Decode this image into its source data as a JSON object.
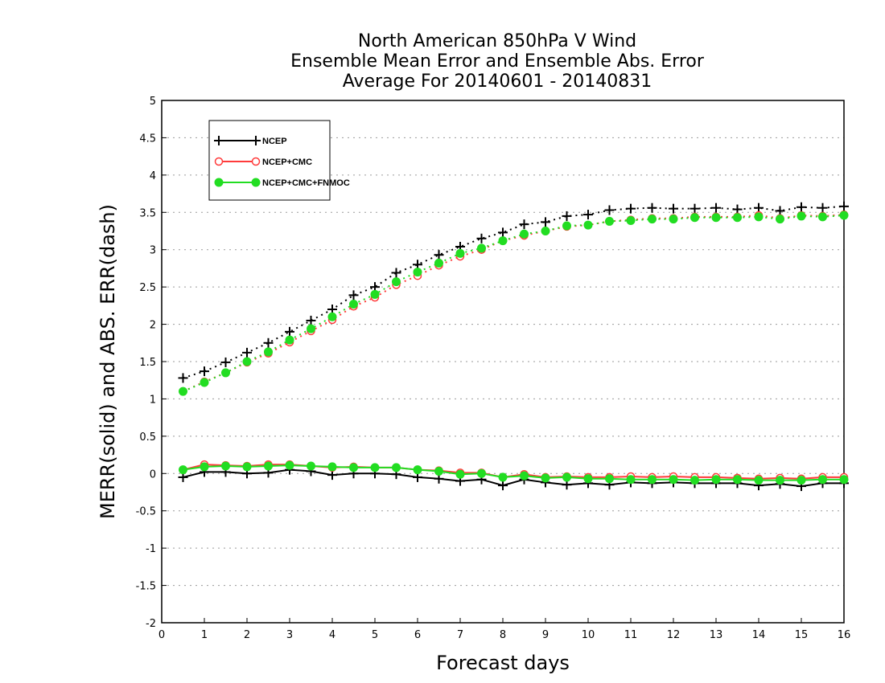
{
  "chart_data": {
    "type": "line",
    "title": [
      "North American 850hPa V Wind",
      "Ensemble Mean Error and Ensemble Abs. Error",
      "Average For 20140601 - 20140831"
    ],
    "xlabel": "Forecast days",
    "ylabel": "MERR(solid) and ABS. ERR(dash)",
    "xlim": [
      0,
      16
    ],
    "ylim": [
      -2,
      5
    ],
    "xticks": [
      0,
      1,
      2,
      3,
      4,
      5,
      6,
      7,
      8,
      9,
      10,
      11,
      12,
      13,
      14,
      15,
      16
    ],
    "yticks": [
      -2,
      -1.5,
      -1,
      -0.5,
      0,
      0.5,
      1,
      1.5,
      2,
      2.5,
      3,
      3.5,
      4,
      4.5,
      5
    ],
    "grid": "horizontal dotted",
    "legend_position": "top-left",
    "x": [
      0.5,
      1,
      1.5,
      2,
      2.5,
      3,
      3.5,
      4,
      4.5,
      5,
      5.5,
      6,
      6.5,
      7,
      7.5,
      8,
      8.5,
      9,
      9.5,
      10,
      10.5,
      11,
      11.5,
      12,
      12.5,
      13,
      13.5,
      14,
      14.5,
      15,
      15.5,
      16
    ],
    "series": [
      {
        "name": "NCEP",
        "color": "#000000",
        "marker": "plus",
        "merr": [
          -0.05,
          0.02,
          0.02,
          0.0,
          0.01,
          0.05,
          0.03,
          -0.02,
          0.0,
          0.0,
          -0.01,
          -0.05,
          -0.07,
          -0.1,
          -0.08,
          -0.16,
          -0.08,
          -0.12,
          -0.15,
          -0.13,
          -0.15,
          -0.12,
          -0.13,
          -0.12,
          -0.13,
          -0.13,
          -0.13,
          -0.16,
          -0.14,
          -0.17,
          -0.13,
          -0.13
        ],
        "abs_err": [
          1.28,
          1.37,
          1.49,
          1.62,
          1.75,
          1.9,
          2.05,
          2.2,
          2.39,
          2.5,
          2.69,
          2.8,
          2.93,
          3.04,
          3.15,
          3.23,
          3.34,
          3.37,
          3.45,
          3.47,
          3.53,
          3.55,
          3.56,
          3.55,
          3.55,
          3.56,
          3.54,
          3.56,
          3.52,
          3.57,
          3.56,
          3.58
        ]
      },
      {
        "name": "NCEP+CMC",
        "color": "#ff3b3b",
        "marker": "open-circle",
        "merr": [
          0.05,
          0.12,
          0.11,
          0.1,
          0.12,
          0.12,
          0.1,
          0.08,
          0.09,
          0.08,
          0.08,
          0.05,
          0.04,
          0.01,
          0.01,
          -0.05,
          -0.01,
          -0.05,
          -0.04,
          -0.05,
          -0.05,
          -0.04,
          -0.05,
          -0.04,
          -0.05,
          -0.05,
          -0.06,
          -0.07,
          -0.06,
          -0.07,
          -0.05,
          -0.05
        ],
        "abs_err": [
          1.1,
          1.23,
          1.35,
          1.49,
          1.61,
          1.76,
          1.91,
          2.06,
          2.24,
          2.36,
          2.53,
          2.65,
          2.79,
          2.91,
          3.0,
          3.12,
          3.19,
          3.25,
          3.31,
          3.33,
          3.38,
          3.4,
          3.42,
          3.42,
          3.44,
          3.44,
          3.44,
          3.46,
          3.42,
          3.46,
          3.45,
          3.47
        ]
      },
      {
        "name": "NCEP+CMC+FNMOC",
        "color": "#22dd22",
        "marker": "filled-circle",
        "merr": [
          0.05,
          0.09,
          0.1,
          0.09,
          0.1,
          0.11,
          0.1,
          0.09,
          0.08,
          0.08,
          0.08,
          0.05,
          0.03,
          -0.01,
          0.0,
          -0.05,
          -0.03,
          -0.06,
          -0.05,
          -0.07,
          -0.07,
          -0.08,
          -0.08,
          -0.08,
          -0.09,
          -0.08,
          -0.08,
          -0.09,
          -0.09,
          -0.09,
          -0.08,
          -0.08
        ],
        "abs_err": [
          1.1,
          1.22,
          1.35,
          1.5,
          1.63,
          1.79,
          1.94,
          2.1,
          2.27,
          2.4,
          2.57,
          2.7,
          2.82,
          2.95,
          3.02,
          3.12,
          3.21,
          3.25,
          3.32,
          3.33,
          3.38,
          3.39,
          3.41,
          3.41,
          3.43,
          3.43,
          3.43,
          3.44,
          3.41,
          3.45,
          3.44,
          3.46
        ]
      }
    ]
  }
}
